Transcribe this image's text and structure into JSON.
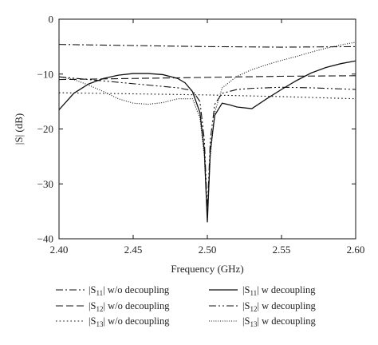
{
  "chart_data": {
    "type": "line",
    "xlabel": "Frequency (GHz)",
    "ylabel": "|S| (dB)",
    "xlim": [
      2.4,
      2.6
    ],
    "ylim": [
      -40,
      0
    ],
    "xticks": [
      2.4,
      2.45,
      2.5,
      2.55,
      2.6
    ],
    "xtick_labels": [
      "2.40",
      "2.45",
      "2.50",
      "2.55",
      "2.60"
    ],
    "yticks": [
      0,
      -10,
      -20,
      -30,
      -40
    ],
    "ytick_labels": [
      "0",
      "−10",
      "−20",
      "−30",
      "−40"
    ],
    "grid": false,
    "legend_position": "bottom",
    "series": [
      {
        "name": "|S11| w/o decoupling",
        "legend": {
          "pre": "|S",
          "sub": "11",
          "post": "| w/o decoupling"
        },
        "style": "dashdot",
        "x": [
          2.4,
          2.45,
          2.5,
          2.55,
          2.6
        ],
        "y": [
          -4.6,
          -4.8,
          -5.0,
          -5.1,
          -5.0
        ]
      },
      {
        "name": "|S12| w/o decoupling",
        "legend": {
          "pre": "|S",
          "sub": "12",
          "post": "| w/o decoupling"
        },
        "style": "dashed",
        "x": [
          2.4,
          2.45,
          2.5,
          2.55,
          2.6
        ],
        "y": [
          -11.0,
          -10.8,
          -10.6,
          -10.4,
          -10.3
        ]
      },
      {
        "name": "|S13| w/o decoupling",
        "legend": {
          "pre": "|S",
          "sub": "13",
          "post": "| w/o decoupling"
        },
        "style": "dotted",
        "x": [
          2.4,
          2.45,
          2.5,
          2.55,
          2.6
        ],
        "y": [
          -13.4,
          -13.6,
          -13.8,
          -14.1,
          -14.5
        ]
      },
      {
        "name": "|S11| w decoupling",
        "legend": {
          "pre": "|S",
          "sub": "11",
          "post": "| w decoupling"
        },
        "style": "solid",
        "x": [
          2.4,
          2.41,
          2.42,
          2.43,
          2.44,
          2.45,
          2.46,
          2.47,
          2.48,
          2.485,
          2.49,
          2.495,
          2.498,
          2.5,
          2.502,
          2.505,
          2.51,
          2.515,
          2.52,
          2.53,
          2.54,
          2.55,
          2.56,
          2.57,
          2.58,
          2.59,
          2.6
        ],
        "y": [
          -16.5,
          -13.5,
          -11.8,
          -10.8,
          -10.2,
          -9.9,
          -9.9,
          -10.1,
          -10.8,
          -11.6,
          -13.2,
          -17.0,
          -24.0,
          -37.0,
          -24.0,
          -17.5,
          -15.3,
          -15.6,
          -16.0,
          -16.3,
          -14.5,
          -12.8,
          -11.2,
          -9.8,
          -8.8,
          -8.1,
          -7.6
        ]
      },
      {
        "name": "|S12| w decoupling",
        "legend": {
          "pre": "|S",
          "sub": "12",
          "post": "| w decoupling"
        },
        "style": "dashdotdot",
        "x": [
          2.4,
          2.42,
          2.44,
          2.46,
          2.48,
          2.49,
          2.495,
          2.498,
          2.5,
          2.502,
          2.505,
          2.51,
          2.52,
          2.53,
          2.55,
          2.57,
          2.6
        ],
        "y": [
          -10.5,
          -11.0,
          -11.5,
          -12.0,
          -12.5,
          -13.0,
          -15.0,
          -22.0,
          -35.0,
          -22.0,
          -15.5,
          -13.5,
          -12.8,
          -12.6,
          -12.4,
          -12.5,
          -12.8
        ]
      },
      {
        "name": "|S13| w decoupling",
        "legend": {
          "pre": "|S",
          "sub": "13",
          "post": "| w decoupling"
        },
        "style": "densedot",
        "x": [
          2.4,
          2.41,
          2.42,
          2.43,
          2.44,
          2.45,
          2.46,
          2.47,
          2.48,
          2.49,
          2.495,
          2.498,
          2.5,
          2.502,
          2.505,
          2.51,
          2.52,
          2.53,
          2.54,
          2.55,
          2.56,
          2.57,
          2.58,
          2.59,
          2.6
        ],
        "y": [
          -10.5,
          -11.0,
          -12.0,
          -13.2,
          -14.5,
          -15.3,
          -15.5,
          -15.2,
          -14.5,
          -14.5,
          -18.0,
          -25.0,
          -36.0,
          -25.0,
          -17.0,
          -12.5,
          -10.4,
          -9.2,
          -8.3,
          -7.5,
          -6.8,
          -6.0,
          -5.3,
          -4.7,
          -4.2
        ]
      }
    ]
  }
}
